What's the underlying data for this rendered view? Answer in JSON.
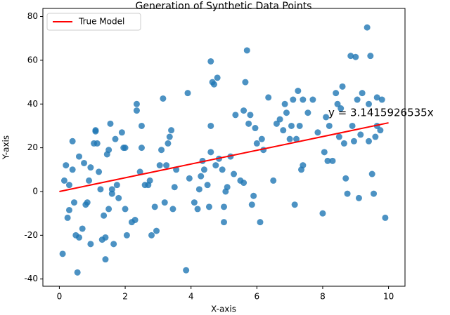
{
  "chart_data": {
    "type": "scatter",
    "title": "Generation of Synthetic Data Points",
    "x_label": "X-axis",
    "y_label": "Y-axis",
    "xlim": [
      -0.5,
      10.5
    ],
    "ylim": [
      -43.3,
      83.7
    ],
    "xticks": [
      0,
      2,
      4,
      6,
      8,
      10
    ],
    "yticks": [
      -40,
      -20,
      0,
      20,
      40,
      60,
      80
    ],
    "legend": "upper left",
    "annotation": {
      "text": "y = 3.1415926535x",
      "color": "#ff0000"
    },
    "series": [
      {
        "type": "scatter",
        "color": "#1f77b4",
        "x": [
          0.1,
          0.15,
          0.2,
          0.3,
          0.25,
          0.3,
          0.4,
          0.4,
          0.45,
          0.5,
          0.55,
          0.6,
          0.6,
          0.7,
          0.75,
          0.8,
          0.85,
          0.9,
          0.95,
          0.95,
          1.05,
          1.1,
          1.1,
          1.15,
          1.2,
          1.25,
          1.3,
          1.35,
          1.4,
          1.4,
          1.45,
          1.5,
          1.5,
          1.55,
          1.6,
          1.6,
          1.65,
          1.7,
          1.75,
          1.8,
          1.9,
          1.95,
          2.0,
          2.0,
          2.05,
          2.2,
          2.3,
          2.35,
          2.35,
          2.45,
          2.5,
          2.5,
          2.6,
          2.7,
          2.75,
          2.8,
          2.9,
          2.95,
          3.05,
          3.1,
          3.15,
          3.2,
          3.25,
          3.3,
          3.35,
          3.4,
          3.45,
          3.5,
          3.55,
          3.85,
          3.9,
          3.95,
          4.1,
          4.2,
          4.25,
          4.3,
          4.35,
          4.4,
          4.5,
          4.55,
          4.6,
          4.6,
          4.65,
          4.6,
          4.7,
          4.75,
          4.8,
          4.85,
          4.95,
          5.0,
          5.0,
          5.05,
          5.1,
          5.2,
          5.3,
          5.35,
          5.5,
          5.6,
          5.6,
          5.65,
          5.7,
          5.75,
          5.8,
          5.85,
          5.9,
          5.95,
          6.0,
          6.1,
          6.15,
          6.2,
          6.35,
          6.5,
          6.6,
          6.7,
          6.8,
          6.85,
          6.9,
          7.0,
          7.05,
          7.1,
          7.15,
          7.2,
          7.25,
          7.3,
          7.35,
          7.4,
          7.4,
          7.55,
          7.7,
          7.85,
          8.0,
          8.05,
          8.1,
          8.15,
          8.2,
          8.3,
          8.4,
          8.45,
          8.5,
          8.55,
          8.6,
          8.65,
          8.7,
          8.75,
          8.85,
          8.9,
          8.95,
          9.0,
          9.05,
          9.1,
          9.15,
          9.2,
          9.35,
          9.4,
          9.4,
          9.45,
          9.5,
          9.55,
          9.6,
          9.65,
          9.65,
          9.75,
          9.8,
          9.9
        ],
        "values": [
          -28.5,
          5,
          12,
          3,
          -12,
          -8.5,
          23,
          10,
          -5,
          -20,
          -37,
          -21,
          16,
          -17,
          13,
          -6,
          -5,
          5,
          -24,
          11,
          22,
          28,
          27.5,
          22,
          9,
          1,
          -22,
          -11,
          -21,
          -31,
          17,
          -8,
          19,
          31,
          -1,
          1,
          -24,
          24,
          3,
          -3,
          27,
          20,
          -8,
          20,
          -20,
          -14,
          -13,
          40,
          37,
          9,
          30,
          20,
          3,
          3,
          5,
          -20,
          -7,
          -18,
          12,
          19,
          42.5,
          -5,
          12,
          22,
          25,
          28,
          -8,
          2,
          10,
          -36,
          45,
          6,
          -5,
          -8,
          1,
          7,
          14,
          10,
          3,
          -7,
          18,
          30,
          50,
          59.5,
          49,
          12,
          52,
          15,
          10,
          -7,
          -14,
          0,
          2,
          16,
          8,
          35,
          5,
          37,
          4,
          50,
          64.5,
          31,
          35,
          -6,
          -2,
          29,
          22,
          -14,
          24,
          19,
          43,
          5,
          31,
          33,
          28,
          40,
          36,
          24,
          30,
          42,
          -6,
          24,
          46,
          30,
          10,
          42,
          12,
          36,
          42,
          27,
          -10,
          18,
          34,
          14,
          30,
          14,
          45,
          40,
          25,
          38,
          48,
          22,
          6,
          -1,
          62,
          30,
          23,
          61.5,
          42,
          -3,
          26,
          45,
          75,
          40,
          23,
          62,
          8,
          -1,
          25,
          43,
          30,
          28,
          42,
          -12
        ]
      },
      {
        "type": "line",
        "name": "True Model",
        "color": "#ff0000",
        "x": [
          0,
          10
        ],
        "values": [
          0,
          31.4
        ]
      }
    ]
  }
}
